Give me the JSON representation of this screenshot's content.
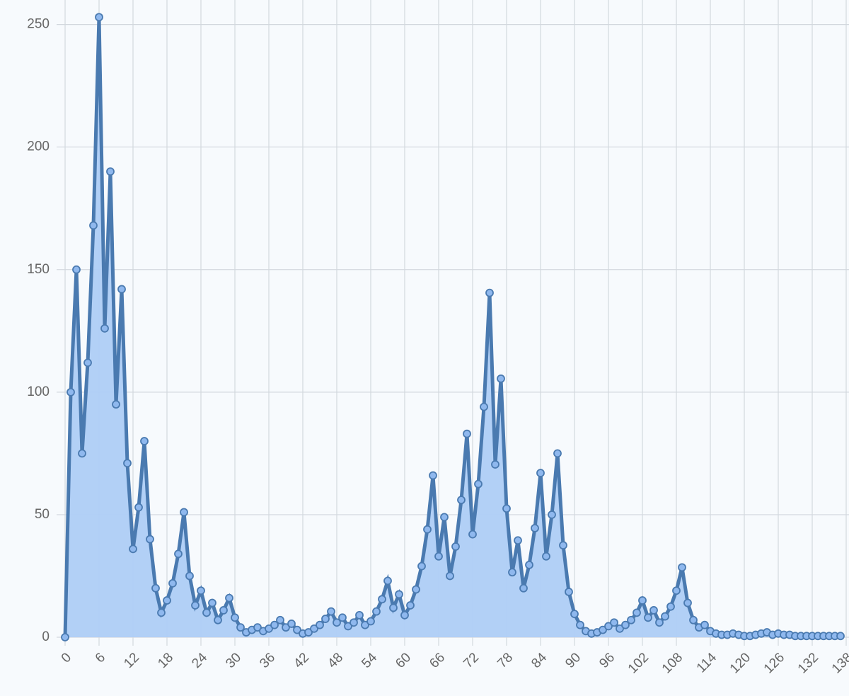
{
  "chart_data": {
    "type": "line",
    "x": [
      0,
      1,
      2,
      3,
      4,
      5,
      6,
      7,
      8,
      9,
      10,
      11,
      12,
      13,
      14,
      15,
      16,
      17,
      18,
      19,
      20,
      21,
      22,
      23,
      24,
      25,
      26,
      27,
      28,
      29,
      30,
      31,
      32,
      33,
      34,
      35,
      36,
      37,
      38,
      39,
      40,
      41,
      42,
      43,
      44,
      45,
      46,
      47,
      48,
      49,
      50,
      51,
      52,
      53,
      54,
      55,
      56,
      57,
      58,
      59,
      60,
      61,
      62,
      63,
      64,
      65,
      66,
      67,
      68,
      69,
      70,
      71,
      72,
      73,
      74,
      75,
      76,
      77,
      78,
      79,
      80,
      81,
      82,
      83,
      84,
      85,
      86,
      87,
      88,
      89,
      90,
      91,
      92,
      93,
      94,
      95,
      96,
      97,
      98,
      99,
      100,
      101,
      102,
      103,
      104,
      105,
      106,
      107,
      108,
      109,
      110,
      111,
      112,
      113,
      114,
      115,
      116,
      117,
      118,
      119,
      120,
      121,
      122,
      123,
      124,
      125,
      126,
      127,
      128,
      129,
      130,
      131,
      132,
      133,
      134,
      135,
      136,
      137
    ],
    "series": [
      {
        "color": "#4a7ab0",
        "fill": "#aecdf5",
        "marker_fill": "#8fb8ee",
        "values": [
          0,
          100,
          150,
          75,
          112,
          168,
          253,
          126,
          190,
          95,
          142,
          71,
          36,
          53,
          80,
          40,
          20,
          10,
          15,
          22,
          34,
          51,
          25,
          13,
          19,
          10,
          14,
          7,
          11,
          16,
          8,
          4,
          2,
          3,
          4,
          2.5,
          3.5,
          5,
          7,
          4,
          5.5,
          3,
          1.5,
          2,
          3.5,
          5,
          7.5,
          10.5,
          6,
          8,
          4.5,
          6,
          9,
          5,
          6.5,
          10.5,
          15.5,
          23,
          12,
          17.5,
          9,
          13,
          19.5,
          29,
          44,
          66,
          33,
          49,
          25,
          37,
          56,
          83,
          42,
          62.5,
          94,
          140.5,
          70.5,
          105.5,
          52.5,
          26.5,
          39.5,
          20,
          29.5,
          44.5,
          67,
          33,
          50,
          75,
          37.5,
          18.5,
          9.5,
          5,
          2.5,
          1.5,
          2,
          3,
          4.5,
          6,
          3.5,
          5,
          7,
          10,
          15,
          8,
          11,
          6,
          8.5,
          12.5,
          19,
          28.5,
          14,
          7,
          4,
          5,
          2.5,
          1.5,
          1,
          1,
          1.5,
          1,
          0.5,
          0.5,
          1,
          1.5,
          2,
          1,
          1.5,
          1,
          1,
          0.5,
          0.5,
          0.5,
          0.5,
          0.5,
          0.5,
          0.5,
          0.5,
          0.5
        ]
      }
    ],
    "xlim": [
      0,
      138.5
    ],
    "ylim": [
      0,
      260
    ],
    "xticks": [
      0,
      6,
      12,
      18,
      24,
      30,
      36,
      42,
      48,
      54,
      60,
      66,
      72,
      78,
      84,
      90,
      96,
      102,
      108,
      114,
      120,
      126,
      132,
      138
    ],
    "yticks": [
      0,
      50,
      100,
      150,
      200,
      250
    ],
    "grid": true
  }
}
